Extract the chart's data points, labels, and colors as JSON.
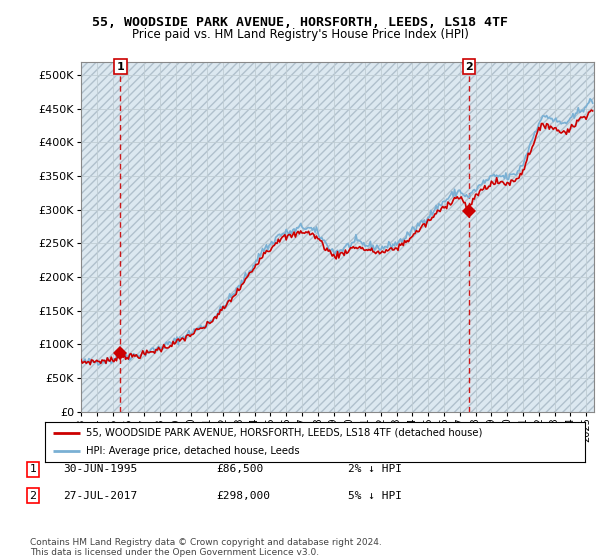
{
  "title": "55, WOODSIDE PARK AVENUE, HORSFORTH, LEEDS, LS18 4TF",
  "subtitle": "Price paid vs. HM Land Registry's House Price Index (HPI)",
  "legend_line1": "55, WOODSIDE PARK AVENUE, HORSFORTH, LEEDS, LS18 4TF (detached house)",
  "legend_line2": "HPI: Average price, detached house, Leeds",
  "annotation1_date": "30-JUN-1995",
  "annotation1_price": "£86,500",
  "annotation1_hpi": "2% ↓ HPI",
  "annotation2_date": "27-JUL-2017",
  "annotation2_price": "£298,000",
  "annotation2_hpi": "5% ↓ HPI",
  "footer": "Contains HM Land Registry data © Crown copyright and database right 2024.\nThis data is licensed under the Open Government Licence v3.0.",
  "bg_color": "#dce8f0",
  "hpi_color": "#7ab0d4",
  "price_color": "#cc0000",
  "marker_color": "#cc0000",
  "grid_color": "#c0cdd4",
  "ylim": [
    0,
    520000
  ],
  "xlim": [
    1993.0,
    2025.5
  ],
  "yticks": [
    0,
    50000,
    100000,
    150000,
    200000,
    250000,
    300000,
    350000,
    400000,
    450000,
    500000
  ],
  "sale1_x": 1995.5,
  "sale1_y": 86500,
  "sale2_x": 2017.58,
  "sale2_y": 298000
}
